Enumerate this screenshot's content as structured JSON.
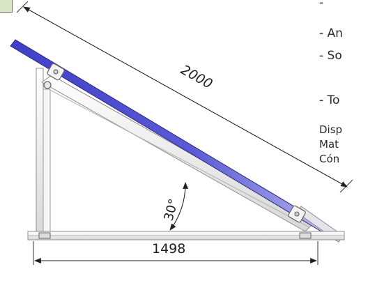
{
  "dimensions": {
    "panel_length": "2000",
    "tilt_angle": "30°",
    "base_length": "1498"
  },
  "side_text": {
    "line1": "- An",
    "line2": "- So",
    "line3": "- To",
    "line4": "Disp",
    "line5": "Mat",
    "line6": "Cón"
  },
  "colors": {
    "panel_blue": "#3d3cc4",
    "frame_grey": "#8e8e8e",
    "frame_light": "#e8e8e8"
  }
}
